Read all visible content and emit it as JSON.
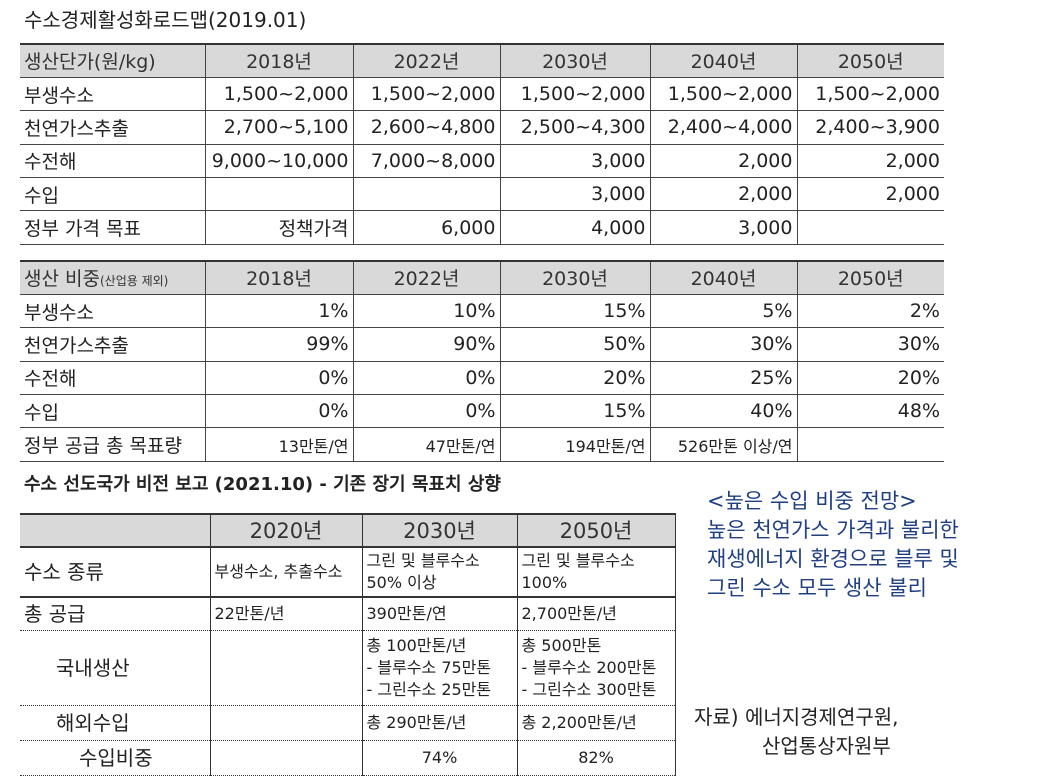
{
  "title1": "수소경제활성화로드맵(2019.01)",
  "price_table": {
    "header": [
      "생산단가(원/kg)",
      "2018년",
      "2022년",
      "2030년",
      "2040년",
      "2050년"
    ],
    "rows": [
      [
        "부생수소",
        "1,500~2,000",
        "1,500~2,000",
        "1,500~2,000",
        "1,500~2,000",
        "1,500~2,000"
      ],
      [
        "천연가스추출",
        "2,700~5,100",
        "2,600~4,800",
        "2,500~4,300",
        "2,400~4,000",
        "2,400~3,900"
      ],
      [
        "수전해",
        "9,000~10,000",
        "7,000~8,000",
        "3,000",
        "2,000",
        "2,000"
      ],
      [
        "수입",
        "",
        "",
        "3,000",
        "2,000",
        "2,000"
      ],
      [
        "정부 가격 목표",
        "정책가격",
        "6,000",
        "4,000",
        "3,000",
        ""
      ]
    ]
  },
  "share_table": {
    "header_main": "생산 비중",
    "header_note": "(산업용 제외)",
    "years": [
      "2018년",
      "2022년",
      "2030년",
      "2040년",
      "2050년"
    ],
    "rows": [
      [
        "부생수소",
        "1%",
        "10%",
        "15%",
        "5%",
        "2%"
      ],
      [
        "천연가스추출",
        "99%",
        "90%",
        "50%",
        "30%",
        "30%"
      ],
      [
        "수전해",
        "0%",
        "0%",
        "20%",
        "25%",
        "20%"
      ],
      [
        "수입",
        "0%",
        "0%",
        "15%",
        "40%",
        "48%"
      ],
      [
        "정부 공급 총 목표량",
        "13만톤/연",
        "47만톤/연",
        "194만톤/연",
        "526만톤 이상/연",
        ""
      ]
    ]
  },
  "title2": "수소 선도국가 비전 보고 (2021.10) - 기존 장기 목표치 상향",
  "vision_table": {
    "header": [
      "",
      "2020년",
      "2030년",
      "2050년"
    ],
    "rows": [
      {
        "label": "수소 종류",
        "c": [
          "부생수소, 추출수소",
          "그린 및 블루수소\n50% 이상",
          "그린 및 블루수소\n100%"
        ]
      },
      {
        "label": "총 공급",
        "c": [
          "22만톤/년",
          "390만톤/연",
          "2,700만톤/년"
        ]
      },
      {
        "label": "국내생산",
        "c": [
          "",
          "총 100만톤/년\n- 블루수소 75만톤\n- 그린수소 25만톤",
          "총 500만톤\n- 블루수소 200만톤\n- 그린수소 300만톤"
        ]
      },
      {
        "label": "해외수입",
        "c": [
          "",
          "총 290만톤/년",
          "총 2,200만톤/년"
        ]
      },
      {
        "label": "수입비중",
        "c": [
          "",
          "74%",
          "82%"
        ]
      }
    ]
  },
  "note": {
    "heading": "<높은 수입 비중 전망>",
    "lines": [
      "높은 천연가스 가격과 불리한",
      "재생에너지 환경으로 블루 및",
      "그린 수소 모두 생산 불리"
    ]
  },
  "source": {
    "line1": "자료) 에너지경제연구원,",
    "line2": "산업통상자원부"
  }
}
